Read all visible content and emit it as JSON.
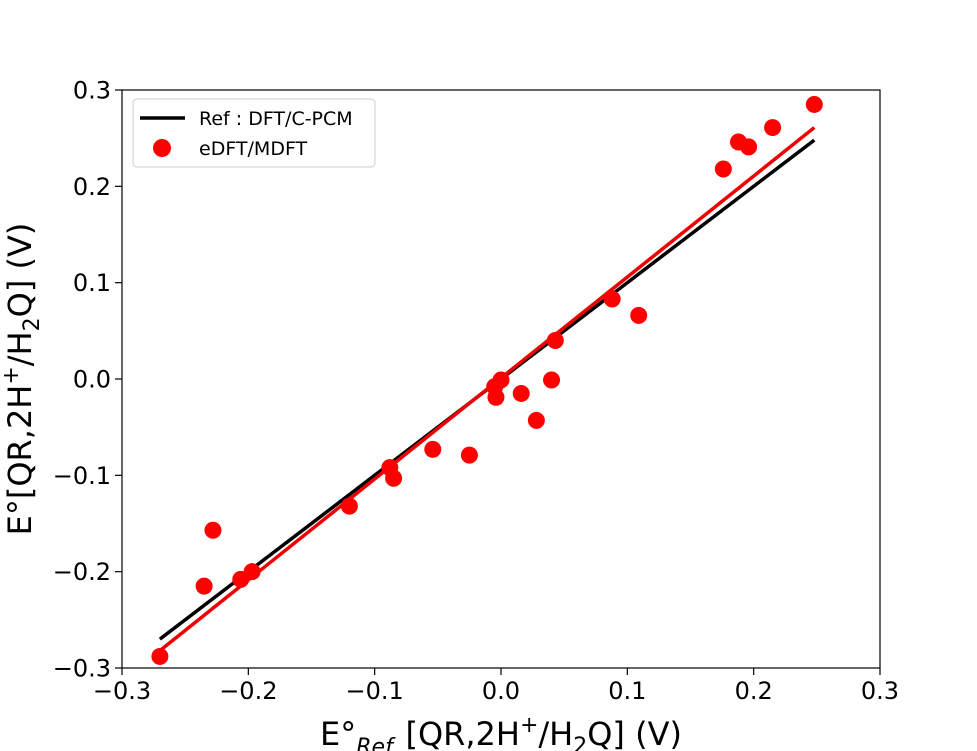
{
  "chart_data": {
    "type": "scatter",
    "xlim": [
      -0.3,
      0.3
    ],
    "ylim": [
      -0.3,
      0.3
    ],
    "x_ticks": [
      -0.3,
      -0.2,
      -0.1,
      0.0,
      0.1,
      0.2,
      0.3
    ],
    "y_ticks": [
      -0.3,
      -0.2,
      -0.1,
      0.0,
      0.1,
      0.2,
      0.3
    ],
    "x_tick_labels": [
      "−0.3",
      "−0.2",
      "−0.1",
      "0.0",
      "0.1",
      "0.2",
      "0.3"
    ],
    "y_tick_labels": [
      "−0.3",
      "−0.2",
      "−0.1",
      "0.0",
      "0.1",
      "0.2",
      "0.3"
    ],
    "xlabel": {
      "e": "E°",
      "sub": "Ref.",
      "pre": "[QR,2H",
      "sup": "+",
      "mid": "/H",
      "sub2": "2",
      "post": "Q] (V)"
    },
    "ylabel": {
      "pre": "E°[QR,2H",
      "sup": "+",
      "mid": "/H",
      "sub": "2",
      "post": "Q] (V)"
    },
    "legend": {
      "position": "upper-left",
      "entries": [
        "Ref : DFT/C-PCM",
        "eDFT/MDFT"
      ]
    },
    "colors": {
      "ref_line": "#000000",
      "fit_line": "#ee0000",
      "points": "#ff0000"
    },
    "series": [
      {
        "name": "Ref : DFT/C-PCM",
        "kind": "line",
        "x": [
          -0.27,
          0.248
        ],
        "y": [
          -0.27,
          0.248
        ]
      },
      {
        "name": "eDFT/MDFT fit",
        "kind": "line",
        "x": [
          -0.27,
          0.248
        ],
        "y": [
          -0.282,
          0.261
        ]
      },
      {
        "name": "eDFT/MDFT",
        "kind": "scatter",
        "x": [
          -0.27,
          -0.235,
          -0.228,
          -0.206,
          -0.197,
          -0.12,
          -0.088,
          -0.085,
          -0.054,
          -0.025,
          -0.005,
          -0.004,
          0.0,
          0.016,
          0.028,
          0.04,
          0.043,
          0.088,
          0.109,
          0.176,
          0.188,
          0.196,
          0.215,
          0.248
        ],
        "y": [
          -0.288,
          -0.215,
          -0.157,
          -0.208,
          -0.2,
          -0.132,
          -0.092,
          -0.103,
          -0.073,
          -0.079,
          -0.008,
          -0.019,
          -0.001,
          -0.015,
          -0.043,
          -0.001,
          0.04,
          0.083,
          0.066,
          0.218,
          0.246,
          0.241,
          0.261,
          0.285
        ]
      }
    ]
  }
}
